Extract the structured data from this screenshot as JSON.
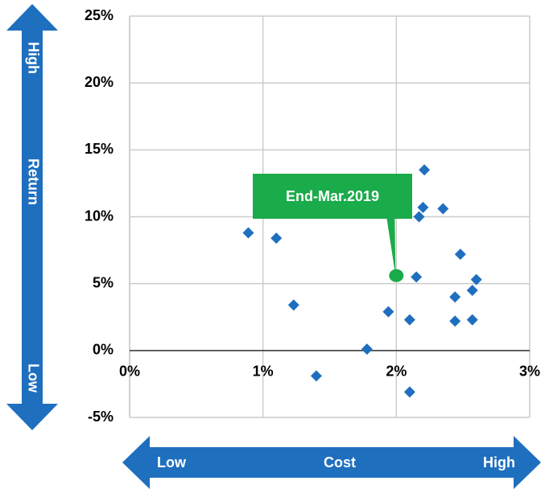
{
  "chart_data": {
    "type": "scatter",
    "x": [
      0.89,
      1.1,
      1.23,
      1.4,
      1.78,
      1.94,
      2.1,
      2.1,
      2.15,
      2.17,
      2.2,
      2.21,
      2.35,
      2.44,
      2.44,
      2.48,
      2.57,
      2.57,
      2.6
    ],
    "values": [
      8.8,
      8.4,
      3.4,
      -1.9,
      0.1,
      2.9,
      2.3,
      -3.1,
      5.5,
      10.0,
      10.7,
      13.5,
      10.6,
      4.0,
      2.2,
      7.2,
      4.5,
      2.3,
      5.3
    ],
    "color": "#1f6fbf",
    "xlim": [
      0,
      3
    ],
    "xticks": [
      {
        "value": 0,
        "label": "0%"
      },
      {
        "value": 1,
        "label": "1%"
      },
      {
        "value": 2,
        "label": "2%"
      },
      {
        "value": 3,
        "label": "3%"
      }
    ],
    "ylim": [
      -5,
      25
    ],
    "yticks": [
      {
        "value": -5,
        "label": "-5%"
      },
      {
        "value": 0,
        "label": "0%"
      },
      {
        "value": 5,
        "label": "5%"
      },
      {
        "value": 10,
        "label": "10%"
      },
      {
        "value": 15,
        "label": "15%"
      },
      {
        "value": 20,
        "label": "20%"
      },
      {
        "value": 25,
        "label": "25%"
      }
    ],
    "grid": true,
    "annotations": [
      {
        "text": "End-Mar.2019",
        "x": 2.0,
        "y": 5.6,
        "color": "#1aab4a"
      }
    ],
    "y_arrow": {
      "high": "High",
      "label": "Return",
      "low": "Low"
    },
    "x_arrow": {
      "low": "Low",
      "label": "Cost",
      "high": "High"
    }
  }
}
